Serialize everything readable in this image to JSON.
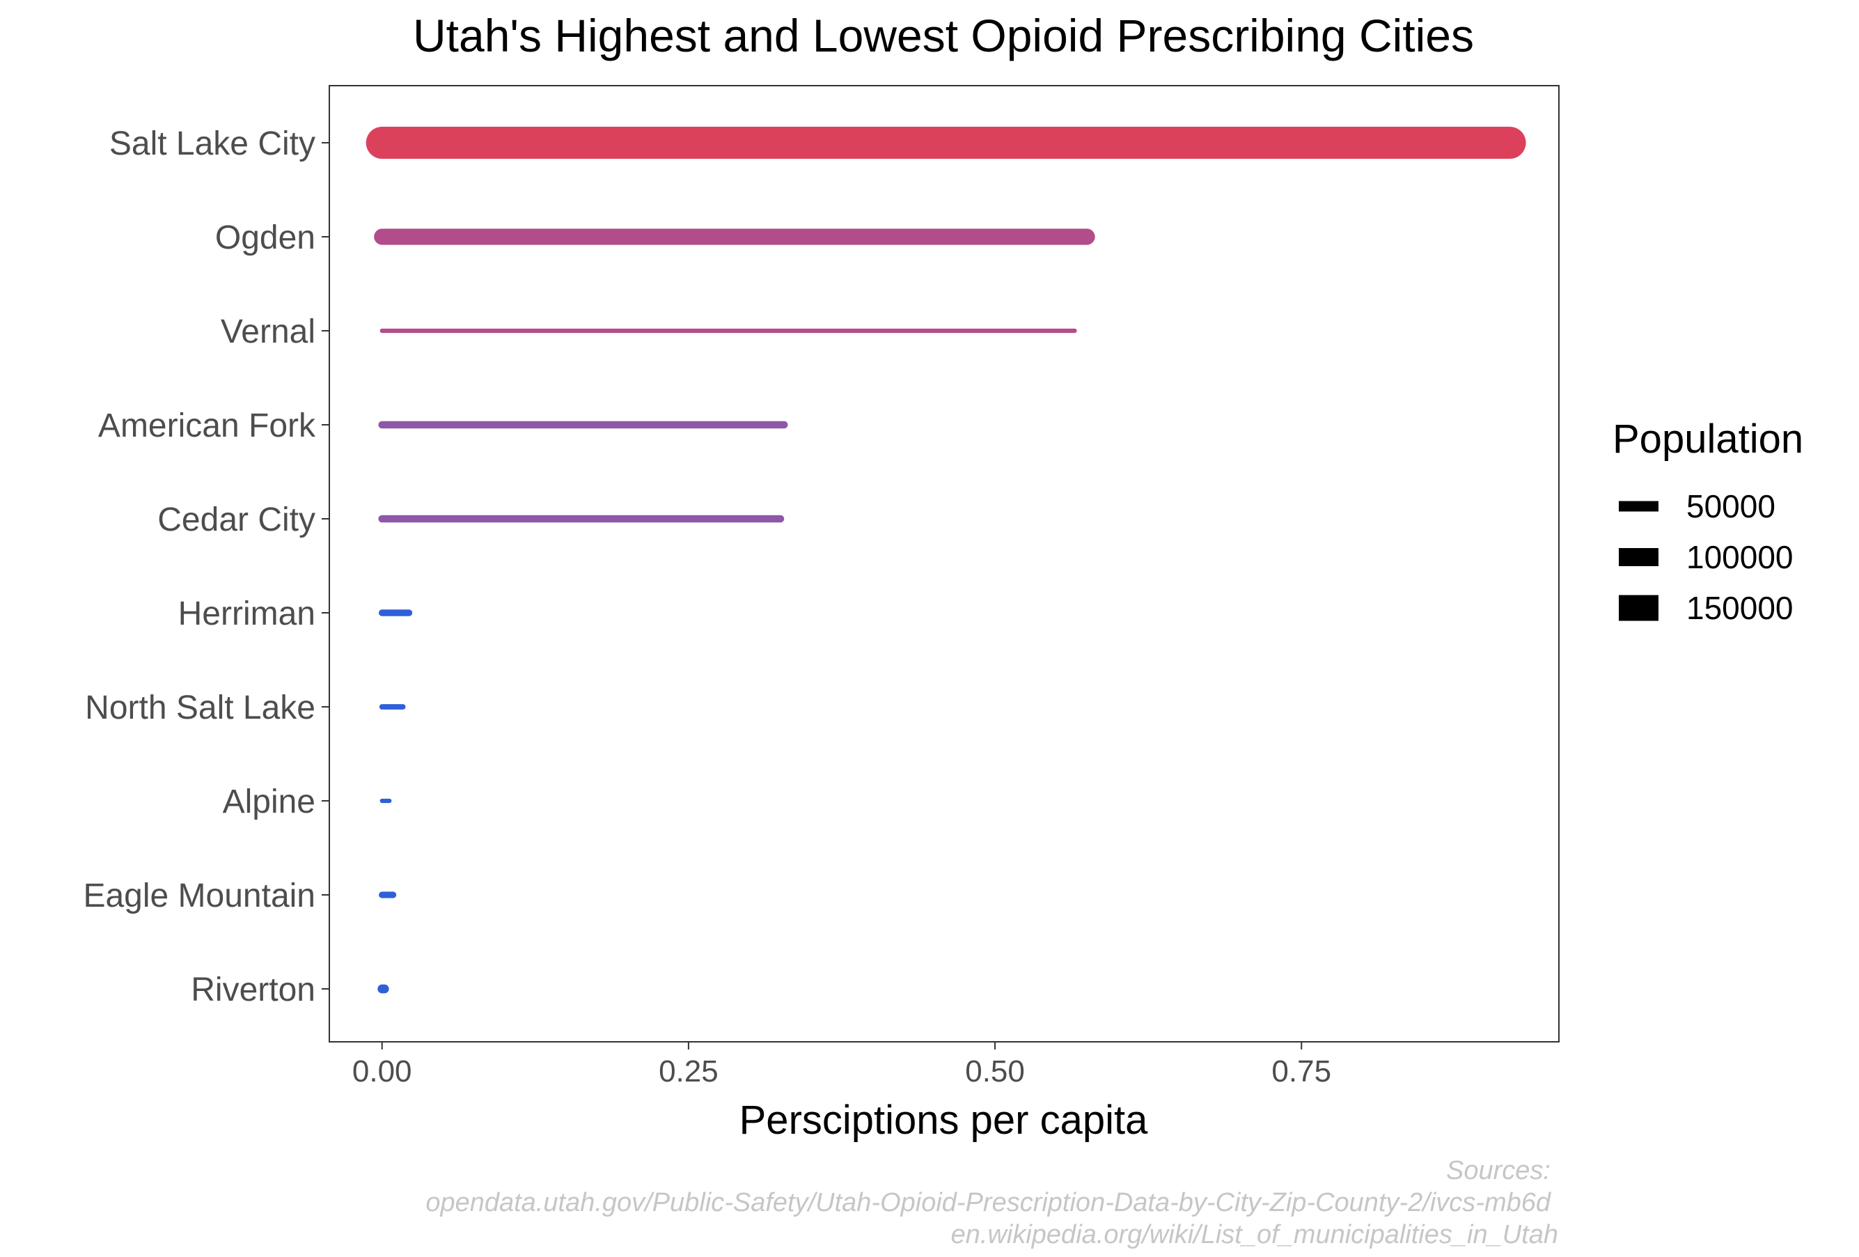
{
  "chart_data": {
    "type": "bar",
    "title": "Utah's Highest and Lowest Opioid Prescribing Cities",
    "xlabel": "Persciptions per capita",
    "ylabel": "",
    "xlim": [
      -0.043,
      0.96
    ],
    "x_ticks": [
      0.0,
      0.25,
      0.5,
      0.75
    ],
    "x_tick_labels": [
      "0.00",
      "0.25",
      "0.50",
      "0.75"
    ],
    "grid": false,
    "categories": [
      "Salt Lake City",
      "Ogden",
      "Vernal",
      "American Fork",
      "Cedar City",
      "Herriman",
      "North Salt Lake",
      "Alpine",
      "Eagle Mountain",
      "Riverton"
    ],
    "values": [
      0.92,
      0.575,
      0.565,
      0.328,
      0.325,
      0.022,
      0.017,
      0.006,
      0.009,
      0.002
    ],
    "population": [
      191000,
      87000,
      10000,
      30000,
      30000,
      25000,
      17000,
      10000,
      24000,
      40000
    ],
    "colors": [
      "#dc415c",
      "#b34c8a",
      "#b34c8a",
      "#8e57a8",
      "#8e57a8",
      "#2e60d8",
      "#2e60d8",
      "#2e60d8",
      "#2e60d8",
      "#2e60d8"
    ],
    "legend": {
      "title": "Population",
      "position": "right",
      "entries": [
        {
          "label": "50000",
          "value": 50000
        },
        {
          "label": "100000",
          "value": 100000
        },
        {
          "label": "150000",
          "value": 150000
        }
      ]
    }
  },
  "sources": {
    "label": "Sources:",
    "lines": [
      "opendata.utah.gov/Public-Safety/Utah-Opioid-Prescription-Data-by-City-Zip-County-2/ivcs-mb6d",
      "en.wikipedia.org/wiki/List_of_municipalities_in_Utah"
    ]
  }
}
